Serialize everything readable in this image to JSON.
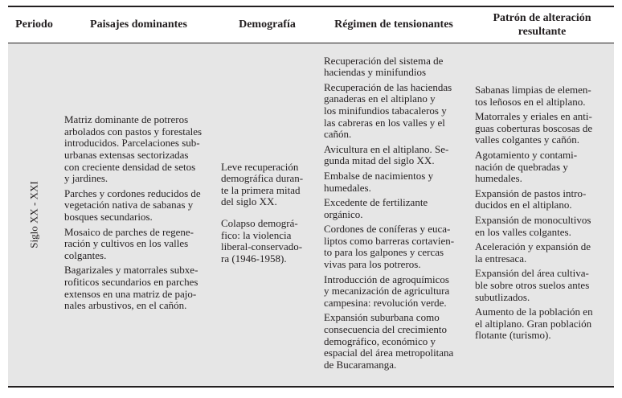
{
  "headers": {
    "periodo": "Periodo",
    "paisajes": "Paisajes dominantes",
    "demografia": "Demografía",
    "regimen": "Régimen de tensionantes",
    "patron": "Patrón de alteración\nresultante"
  },
  "row": {
    "periodo": "Siglo XX - XXI",
    "paisajes": [
      " Matriz dominante de potreros\narbolados con pastos y forestales\nintroducidos. Parcelaciones sub-\nurbanas extensas sectorizadas\ncon creciente densidad de setos\ny jardines.",
      "Parches y cordones reducidos de\nvegetación nativa de sabanas y\nbosques secundarios.",
      "Mosaico de parches de regene-\nración y cultivos en los valles\ncolgantes.",
      "Bagarizales y matorrales subxe-\nrofiticos secundarios en parches\nextensos en una matriz de pajo-\nnales arbustivos, en el cañón."
    ],
    "demografia": [
      "Leve recuperación\ndemográfica duran-\nte la primera mitad\ndel siglo XX.",
      "Colapso demográ-\nfico: la violencia\nliberal-conservado-\nra (1946-1958)."
    ],
    "regimen": [
      "Recuperación del sistema de\nhaciendas y minifundios",
      "Recuperación de las haciendas\nganaderas en el altiplano y\nlos minifundios tabacaleros y\nlas cabreras en los valles y el\ncañón.",
      "Avicultura en el altiplano. Se-\ngunda mitad del siglo XX.",
      "Embalse de nacimientos y\nhumedales.",
      "Excedente de fertilizante\norgánico.",
      "Cordones de coníferas y euca-\nliptos como barreras cortavien-\nto para los galpones y cercas\nvivas para los potreros.",
      "Introducción de agroquímicos\ny mecanización de agricultura\ncampesina: revolución verde.",
      "Expansión suburbana como\nconsecuencia del crecimiento\ndemográfico, económico y\nespacial del área metropolitana\nde Bucaramanga."
    ],
    "patron": [
      "Sabanas limpias de elemen-\ntos leñosos en el altiplano.",
      "Matorrales y eriales en anti-\nguas coberturas boscosas de\nvalles colgantes y cañón.",
      "Agotamiento y contami-\nnación de quebradas y\nhumedales.",
      "Expansión de pastos intro-\nducidos en el altiplano.",
      "Expansión de monocultivos\nen los valles colgantes.",
      "Aceleración y expansión de\nla entresaca.",
      "Expansión del área cultiva-\nble sobre otros suelos antes\nsubutlizados.",
      "Aumento de la población en\nel altiplano. Gran población\nflotante (turismo)."
    ]
  },
  "colors": {
    "body_background": "#e6e6e6",
    "rule": "#231f20",
    "text": "#231f20"
  }
}
